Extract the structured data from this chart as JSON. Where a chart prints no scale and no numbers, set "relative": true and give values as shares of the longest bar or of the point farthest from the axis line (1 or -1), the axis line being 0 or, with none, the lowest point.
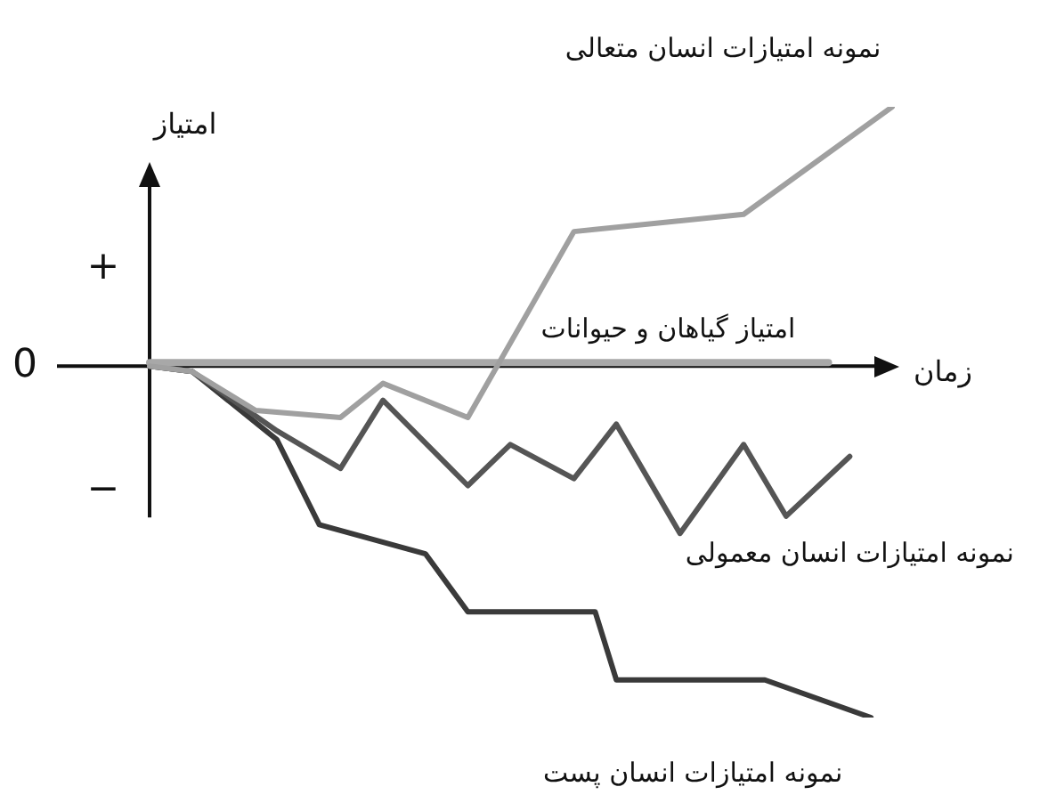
{
  "chart_data": {
    "type": "line",
    "relative": true,
    "xlabel": "زمان",
    "ylabel": "امتیاز",
    "legend": false,
    "marker": "none",
    "line_style": "solid",
    "annotations": [
      "+",
      "0",
      "−"
    ],
    "categories": [
      null,
      null,
      null,
      null,
      null,
      null,
      null,
      null,
      null,
      null,
      null,
      null,
      null,
      null,
      null,
      null,
      null,
      null,
      null,
      null,
      null,
      null,
      null,
      null,
      null,
      null,
      null,
      null,
      null,
      null,
      null,
      null,
      null,
      null,
      null,
      null
    ],
    "series": [
      {
        "name": "نمونه امتیازات انسان متعالی",
        "color": "#a0a0a0",
        "values": [
          0,
          null,
          -0.015,
          null,
          null,
          -0.126,
          null,
          null,
          null,
          -0.146,
          null,
          -0.049,
          null,
          null,
          null,
          -0.146,
          null,
          null,
          null,
          null,
          0.383,
          null,
          null,
          null,
          null,
          null,
          null,
          null,
          0.432,
          null,
          null,
          null,
          null,
          null,
          null,
          0.738
        ]
      },
      {
        "name": "امتیاز گیاهان و حیوانات",
        "color": "#a8a8a8",
        "values": [
          0.01,
          null,
          null,
          null,
          null,
          null,
          null,
          null,
          null,
          null,
          null,
          null,
          null,
          null,
          null,
          null,
          null,
          null,
          null,
          null,
          null,
          null,
          null,
          null,
          null,
          null,
          null,
          null,
          null,
          null,
          null,
          null,
          0.01,
          null,
          null,
          null
        ]
      },
      {
        "name": "نمونه امتیازات انسان معمولی",
        "color": "#555555",
        "values": [
          0,
          null,
          -0.015,
          null,
          null,
          null,
          -0.184,
          null,
          null,
          -0.291,
          null,
          -0.097,
          null,
          null,
          null,
          -0.34,
          null,
          -0.223,
          null,
          null,
          -0.32,
          null,
          -0.165,
          null,
          null,
          -0.476,
          null,
          null,
          -0.223,
          null,
          -0.427,
          null,
          null,
          -0.257,
          null,
          null
        ]
      },
      {
        "name": "نمونه امتیازات انسان پست",
        "color": "#3a3a3a",
        "values": [
          0,
          null,
          -0.015,
          null,
          null,
          null,
          -0.209,
          null,
          -0.451,
          null,
          null,
          null,
          null,
          -0.534,
          null,
          -0.699,
          null,
          null,
          null,
          null,
          null,
          -0.699,
          -0.893,
          null,
          null,
          null,
          null,
          null,
          null,
          -0.893,
          null,
          null,
          null,
          null,
          -1.0,
          null
        ]
      }
    ]
  }
}
